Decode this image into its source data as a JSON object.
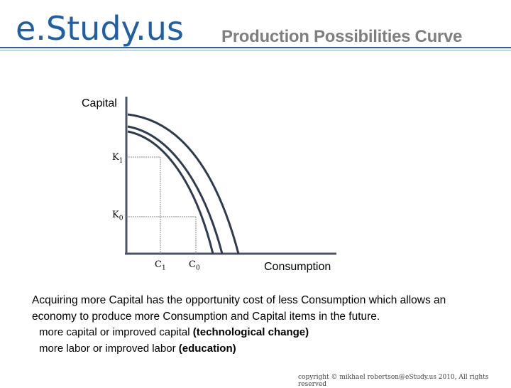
{
  "header": {
    "logo": "e.Study.us",
    "title": "Production Possibilities Curve"
  },
  "diagram": {
    "y_axis_label": "Capital",
    "x_axis_label": "Consumption",
    "ticks": {
      "k1": {
        "base": "K",
        "sub": "1"
      },
      "k0": {
        "base": "K",
        "sub": "0"
      },
      "c1": {
        "base": "C",
        "sub": "1"
      },
      "c0": {
        "base": "C",
        "sub": "0"
      }
    }
  },
  "body": {
    "paragraph": "Acquiring more Capital has the opportunity cost of less Consumption which allows an economy to produce more Consumption and Capital items in the future.",
    "bullet1": {
      "text": "more capital or improved capital ",
      "emph": "(technological change)"
    },
    "bullet2": {
      "text": "more labor or improved labor ",
      "emph": "(education)"
    }
  },
  "footer": {
    "copyright": "copyright © mikhael robertson@eStudy.us 2010, All rights reserved"
  },
  "colors": {
    "logo": "#1f5fa8",
    "title": "#7f7f7f",
    "curve": "#2f3c4f"
  }
}
